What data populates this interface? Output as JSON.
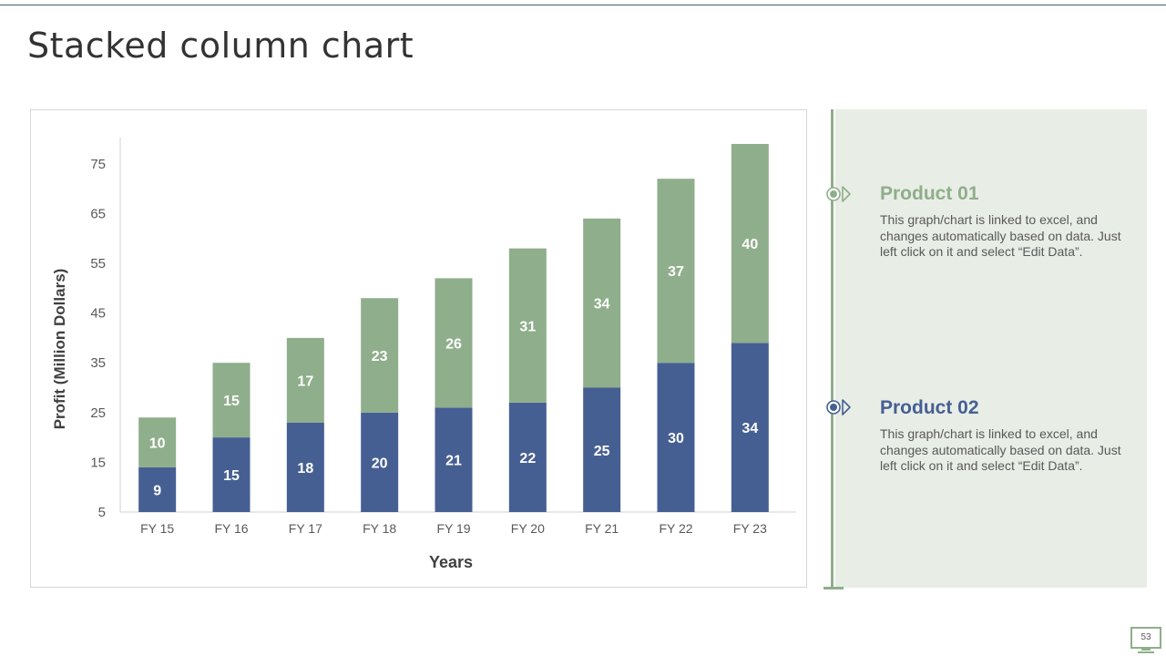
{
  "slide": {
    "title": "Stacked column chart",
    "page_number": "53"
  },
  "colors": {
    "product01": "#8fae8b",
    "product02": "#465f93",
    "panel_bg": "#e8ede6",
    "title_text": "#333333"
  },
  "legend": [
    {
      "title": "Product 01",
      "text": "This graph/chart is linked to excel, and changes automatically based on data. Just left click on it and select “Edit Data”.",
      "color": "#8fae8b",
      "icon": "target-chevron-icon"
    },
    {
      "title": "Product 02",
      "text": "This graph/chart is linked to excel, and changes automatically based on data. Just left click on it and select “Edit Data”.",
      "color": "#465f93",
      "icon": "target-chevron-icon"
    }
  ],
  "chart_data": {
    "type": "bar",
    "stacked": true,
    "title": "",
    "xlabel": "Years",
    "ylabel": "Profit  (Million Dollars)",
    "categories": [
      "FY 15",
      "FY 16",
      "FY 17",
      "FY 18",
      "FY 19",
      "FY 20",
      "FY 21",
      "FY 22",
      "FY 23"
    ],
    "series": [
      {
        "values": [
          9,
          15,
          18,
          20,
          21,
          22,
          25,
          30,
          34
        ],
        "color": "#465f93"
      },
      {
        "values": [
          10,
          15,
          17,
          23,
          26,
          31,
          34,
          37,
          40
        ],
        "color": "#8fae8b"
      }
    ],
    "stack_base": 5,
    "ylim": [
      5,
      80
    ],
    "yticks": [
      5,
      15,
      25,
      35,
      45,
      55,
      65,
      75
    ],
    "grid": false,
    "data_labels": true
  }
}
